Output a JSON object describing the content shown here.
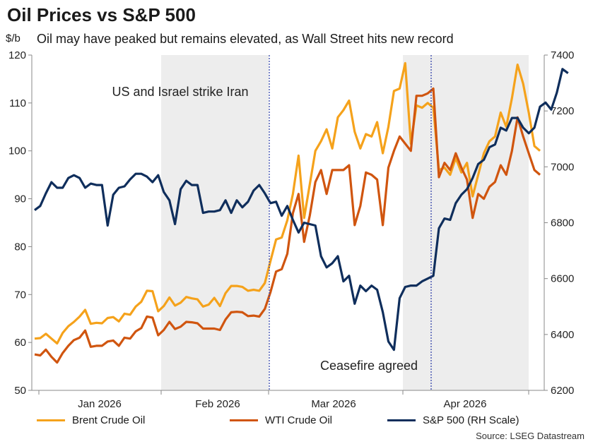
{
  "title": "Oil Prices vs S&P 500",
  "subtitle": "Oil may have peaked but remains elevated, as Wall Street hits new record",
  "y_left_unit": "$/b",
  "source": "Source: LSEG Datastream",
  "colors": {
    "brent": "#F5A21B",
    "wti": "#D0550F",
    "sp500": "#0F2E5C",
    "shade": "#EDEDED",
    "vline": "#3344AA"
  },
  "chart_data": {
    "type": "line",
    "title": "Oil Prices vs S&P 500",
    "subtitle": "Oil may have peaked but remains elevated, as Wall Street hits new record",
    "ylabel": "$/b",
    "ylabel_right": "",
    "ylim": [
      50,
      120
    ],
    "ylim_right": [
      6200,
      7400
    ],
    "x_tick_labels": [
      "Jan 2026",
      "Feb 2026",
      "Mar 2026",
      "Apr 2026"
    ],
    "y_ticks_left": [
      50,
      60,
      70,
      80,
      90,
      100,
      110,
      120
    ],
    "y_ticks_right": [
      6200,
      6400,
      6600,
      6800,
      7000,
      7200,
      7400
    ],
    "legend_position": "bottom",
    "grid": false,
    "annotations": [
      "US and Israel strike Iran",
      "Ceasefire agreed"
    ],
    "series": [
      {
        "name": "Brent Crude Oil",
        "axis": "left",
        "values": [
          60.8,
          60.9,
          61.8,
          60.8,
          59.8,
          62.0,
          63.4,
          64.3,
          65.4,
          66.8,
          63.9,
          64.1,
          64.0,
          65.1,
          65.3,
          64.4,
          66.0,
          65.8,
          67.5,
          68.5,
          70.8,
          70.7,
          66.5,
          67.6,
          69.4,
          67.7,
          68.3,
          69.5,
          69.2,
          69.0,
          67.5,
          67.9,
          69.3,
          67.6,
          70.3,
          71.8,
          71.8,
          71.6,
          70.8,
          71.0,
          70.8,
          72.4,
          77.0,
          81.5,
          81.9,
          85.5,
          91.0,
          99.0,
          86.0,
          93.0,
          100.0,
          102.0,
          104.5,
          100.5,
          107.0,
          108.5,
          110.5,
          104.0,
          100.5,
          103.5,
          103.0,
          106.0,
          99.5,
          105.0,
          112.5,
          113.0,
          118.3,
          101.5,
          109.5,
          109.0,
          110.0,
          109.0,
          96.0,
          96.5,
          95.0,
          98.5,
          95.5,
          97.5,
          90.5,
          95.0,
          99.5,
          102.0,
          103.0,
          108.0,
          105.0,
          111.0,
          118.0,
          114.0,
          108.0,
          101.0,
          100.0
        ]
      },
      {
        "name": "WTI Crude Oil",
        "axis": "left",
        "values": [
          57.5,
          57.3,
          58.5,
          57.0,
          55.8,
          57.8,
          59.3,
          60.5,
          61.0,
          62.5,
          59.1,
          59.3,
          59.3,
          60.2,
          60.4,
          59.3,
          61.0,
          60.8,
          62.3,
          63.0,
          65.4,
          65.2,
          61.5,
          62.6,
          64.3,
          62.8,
          63.3,
          64.3,
          64.2,
          64.0,
          62.9,
          62.9,
          62.9,
          62.6,
          64.8,
          66.3,
          66.4,
          66.3,
          65.5,
          65.6,
          65.4,
          67.0,
          70.5,
          74.8,
          75.3,
          78.5,
          87.0,
          91.0,
          81.0,
          86.5,
          93.5,
          96.0,
          91.0,
          96.0,
          96.0,
          96.0,
          97.0,
          84.5,
          88.5,
          95.5,
          95.0,
          94.0,
          84.5,
          96.5,
          100.0,
          103.0,
          101.5,
          100.0,
          111.5,
          111.5,
          112.0,
          113.0,
          94.5,
          97.5,
          96.0,
          99.5,
          96.5,
          94.0,
          86.0,
          91.0,
          90.0,
          92.5,
          93.5,
          97.0,
          95.0,
          100.0,
          107.0,
          103.0,
          99.5,
          96.0,
          95.0
        ]
      },
      {
        "name": "S&P 500 (RH Scale)",
        "axis": "right",
        "values": [
          6845,
          6860,
          6905,
          6945,
          6925,
          6925,
          6960,
          6970,
          6960,
          6925,
          6940,
          6935,
          6935,
          6790,
          6900,
          6925,
          6930,
          6955,
          6975,
          6975,
          6965,
          6945,
          6970,
          6910,
          6880,
          6795,
          6920,
          6950,
          6935,
          6935,
          6835,
          6840,
          6840,
          6845,
          6880,
          6835,
          6880,
          6855,
          6875,
          6915,
          6935,
          6905,
          6870,
          6875,
          6825,
          6860,
          6810,
          6765,
          6800,
          6795,
          6790,
          6680,
          6640,
          6655,
          6680,
          6590,
          6610,
          6510,
          6575,
          6555,
          6575,
          6560,
          6480,
          6375,
          6345,
          6530,
          6570,
          6575,
          6575,
          6590,
          6600,
          6610,
          6780,
          6815,
          6810,
          6870,
          6900,
          6920,
          6960,
          7010,
          7025,
          7070,
          7080,
          7140,
          7130,
          7175,
          7175,
          7140,
          7120,
          7140,
          7215,
          7230,
          7205,
          7265,
          7350,
          7335
        ]
      }
    ]
  }
}
